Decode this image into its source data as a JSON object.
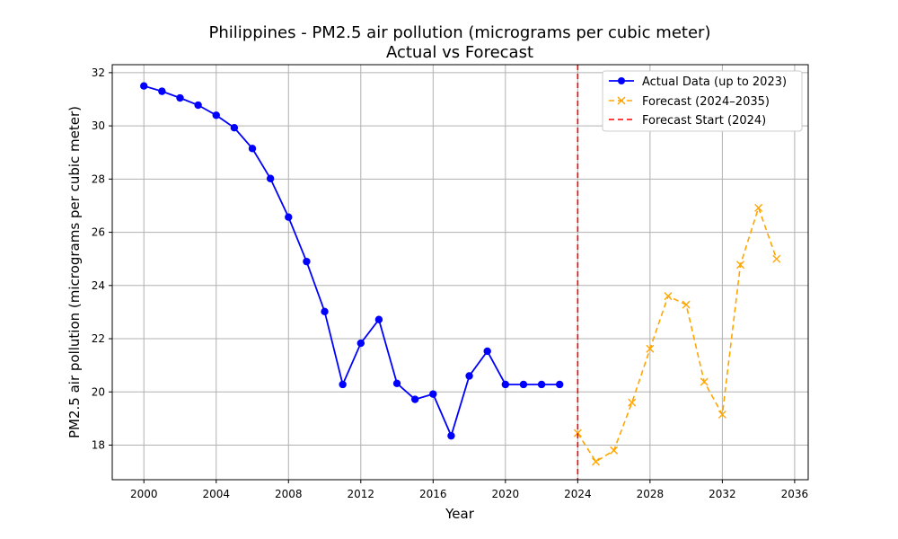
{
  "chart_data": {
    "type": "line",
    "title": "Philippines - PM2.5 air pollution (micrograms per cubic meter)",
    "subtitle": "Actual vs Forecast",
    "xlabel": "Year",
    "ylabel": "PM2.5 air pollution (micrograms per cubic meter)",
    "xlim": [
      1998.25,
      2036.75
    ],
    "ylim": [
      16.7,
      32.3
    ],
    "xticks": [
      2000,
      2004,
      2008,
      2012,
      2016,
      2020,
      2024,
      2028,
      2032,
      2036
    ],
    "yticks": [
      18,
      20,
      22,
      24,
      26,
      28,
      30,
      32
    ],
    "grid": true,
    "legend_position": "top-right",
    "series": [
      {
        "name": "Actual Data (up to 2023)",
        "color": "#0000ff",
        "line_style": "solid",
        "marker": "circle",
        "x": [
          2000,
          2001,
          2002,
          2003,
          2004,
          2005,
          2006,
          2007,
          2008,
          2009,
          2010,
          2011,
          2012,
          2013,
          2014,
          2015,
          2016,
          2017,
          2018,
          2019,
          2020,
          2021,
          2022,
          2023
        ],
        "y": [
          31.5,
          31.3,
          31.05,
          30.78,
          30.4,
          29.93,
          29.15,
          28.02,
          26.57,
          24.9,
          23.02,
          20.28,
          21.83,
          22.72,
          20.32,
          19.72,
          19.92,
          18.35,
          20.6,
          21.53,
          20.28,
          20.28,
          20.28,
          20.28
        ]
      },
      {
        "name": "Forecast (2024–2035)",
        "color": "#ffa500",
        "line_style": "dashed",
        "marker": "x",
        "x": [
          2024,
          2025,
          2026,
          2027,
          2028,
          2029,
          2030,
          2031,
          2032,
          2033,
          2034,
          2035
        ],
        "y": [
          18.45,
          17.38,
          17.8,
          19.6,
          21.62,
          23.6,
          23.28,
          20.38,
          19.15,
          24.78,
          26.92,
          25.0
        ]
      }
    ],
    "vline": {
      "name": "Forecast Start (2024)",
      "x": 2024,
      "color": "#ff0000",
      "line_style": "dashed"
    }
  }
}
